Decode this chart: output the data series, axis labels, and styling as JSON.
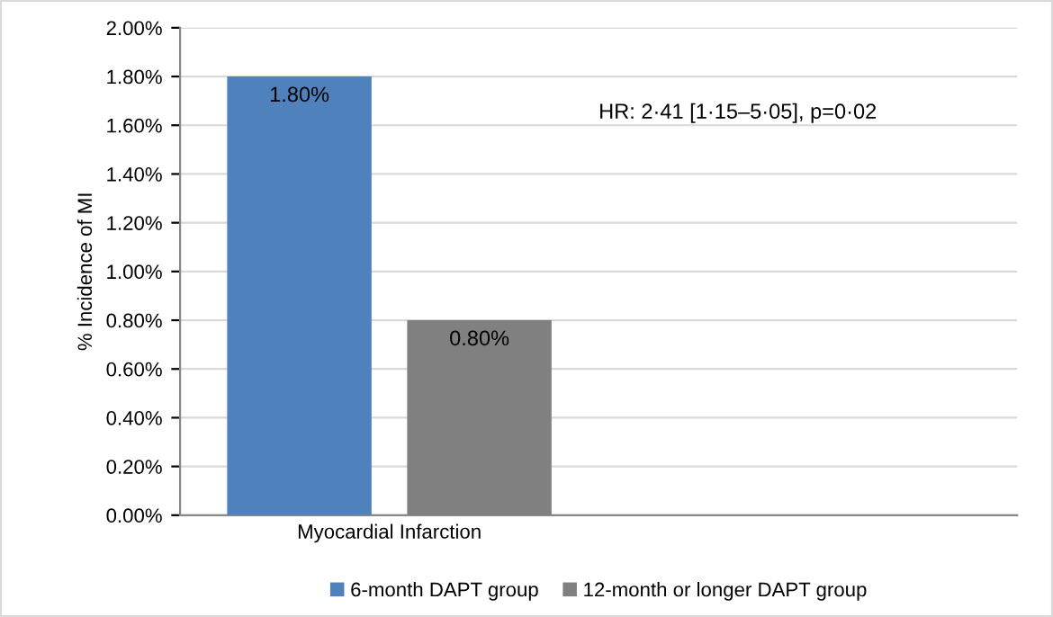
{
  "chart_data": {
    "type": "bar",
    "ylabel": "% Incidence of MI",
    "categories": [
      "Myocardial Infarction",
      null
    ],
    "series": [
      {
        "name": "6-month DAPT group",
        "color": "#4f81bd",
        "values": [
          1.8,
          null
        ],
        "value_labels": [
          "1.80%",
          null
        ]
      },
      {
        "name": "12-month or longer DAPT group",
        "color": "#808080",
        "values": [
          0.8,
          null
        ],
        "value_labels": [
          "0.80%",
          null
        ]
      }
    ],
    "ylim": [
      0,
      2
    ],
    "yticks": [
      {
        "value": 0,
        "label": "0.00%"
      },
      {
        "value": 0.2,
        "label": "0.20%"
      },
      {
        "value": 0.4,
        "label": "0.40%"
      },
      {
        "value": 0.6,
        "label": "0.60%"
      },
      {
        "value": 0.8,
        "label": "0.80%"
      },
      {
        "value": 1.0,
        "label": "1.00%"
      },
      {
        "value": 1.2,
        "label": "1.20%"
      },
      {
        "value": 1.4,
        "label": "1.40%"
      },
      {
        "value": 1.6,
        "label": "1.60%"
      },
      {
        "value": 1.8,
        "label": "1.80%"
      },
      {
        "value": 2.0,
        "label": "2.00%"
      }
    ],
    "annotations": [
      "HR: 2·41 [1·15–5·05], p=0·02"
    ],
    "grid": "y",
    "legend": "bottom"
  }
}
